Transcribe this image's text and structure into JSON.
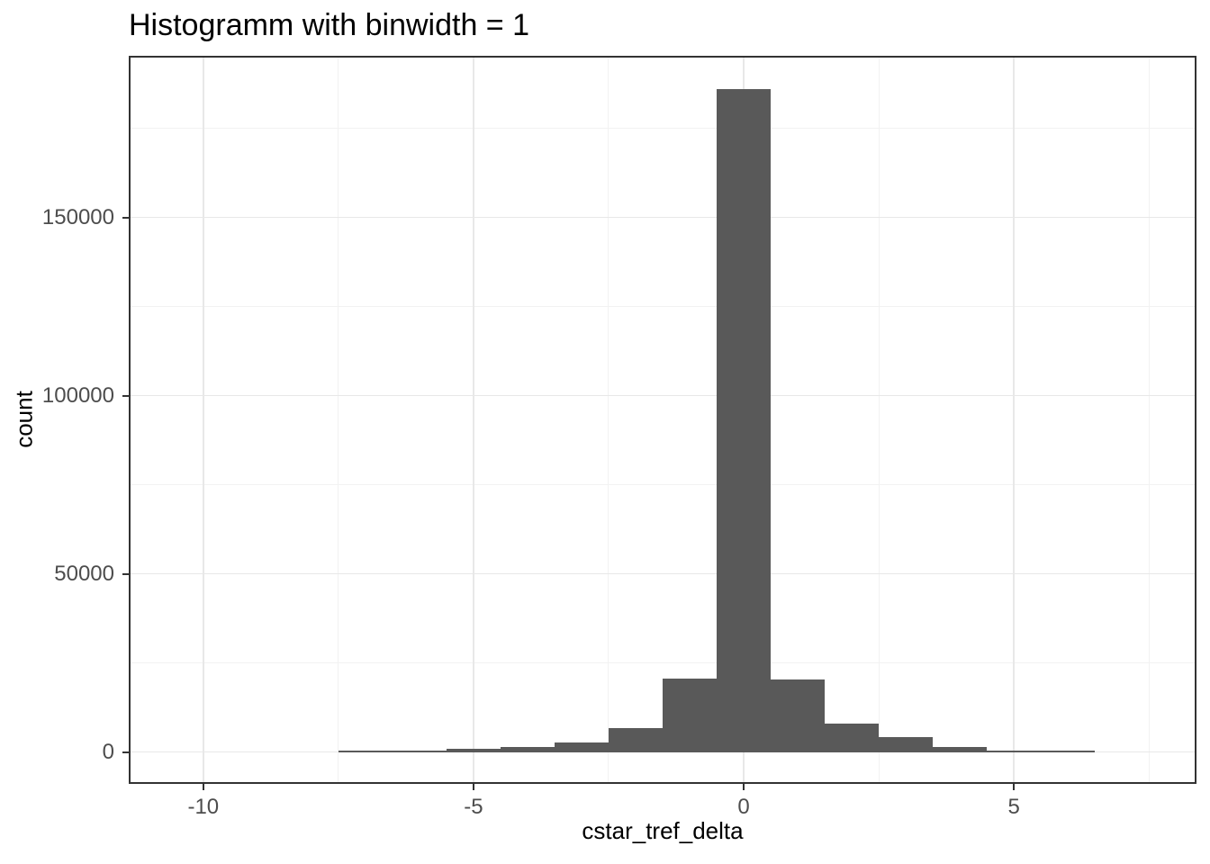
{
  "title": "Histogramm with binwidth = 1",
  "chart_data": {
    "type": "bar",
    "subtype": "histogram",
    "title": "Histogramm with binwidth = 1",
    "xlabel": "cstar_tref_delta",
    "ylabel": "count",
    "binwidth": 1,
    "grid": "on",
    "legend": "none",
    "bar_color": "#595959",
    "x_axis": {
      "min": -11.38,
      "max": 8.38,
      "ticks": [
        -10,
        -5,
        0,
        5
      ],
      "tick_labels": [
        "-10",
        "-5",
        "0",
        "5"
      ],
      "minor_gridlines": [
        -7.5,
        -2.5,
        2.5,
        7.5
      ]
    },
    "y_axis": {
      "min": -8840,
      "max": 195450,
      "ticks": [
        0,
        50000,
        100000,
        150000
      ],
      "tick_labels": [
        "0",
        "50000",
        "100000",
        "150000"
      ],
      "minor_gridlines": [
        25000,
        75000,
        125000,
        175000
      ]
    },
    "bins": [
      {
        "center": -7,
        "count": 400
      },
      {
        "center": -6,
        "count": 500
      },
      {
        "center": -5,
        "count": 900
      },
      {
        "center": -4,
        "count": 1600
      },
      {
        "center": -3,
        "count": 2800
      },
      {
        "center": -2,
        "count": 6800
      },
      {
        "center": -1,
        "count": 20700
      },
      {
        "center": 0,
        "count": 186000
      },
      {
        "center": 1,
        "count": 20500
      },
      {
        "center": 2,
        "count": 8200
      },
      {
        "center": 3,
        "count": 4300
      },
      {
        "center": 4,
        "count": 1500
      },
      {
        "center": 5,
        "count": 450
      },
      {
        "center": 6,
        "count": 400
      }
    ]
  },
  "colors": {
    "bar_fill": "#595959",
    "panel_border": "#333333",
    "grid_major": "#e8e8e8",
    "grid_minor": "#f2f2f2",
    "tick_mark": "#333333",
    "tick_label": "#4d4d4d",
    "title_text": "#000000",
    "background": "#ffffff"
  }
}
